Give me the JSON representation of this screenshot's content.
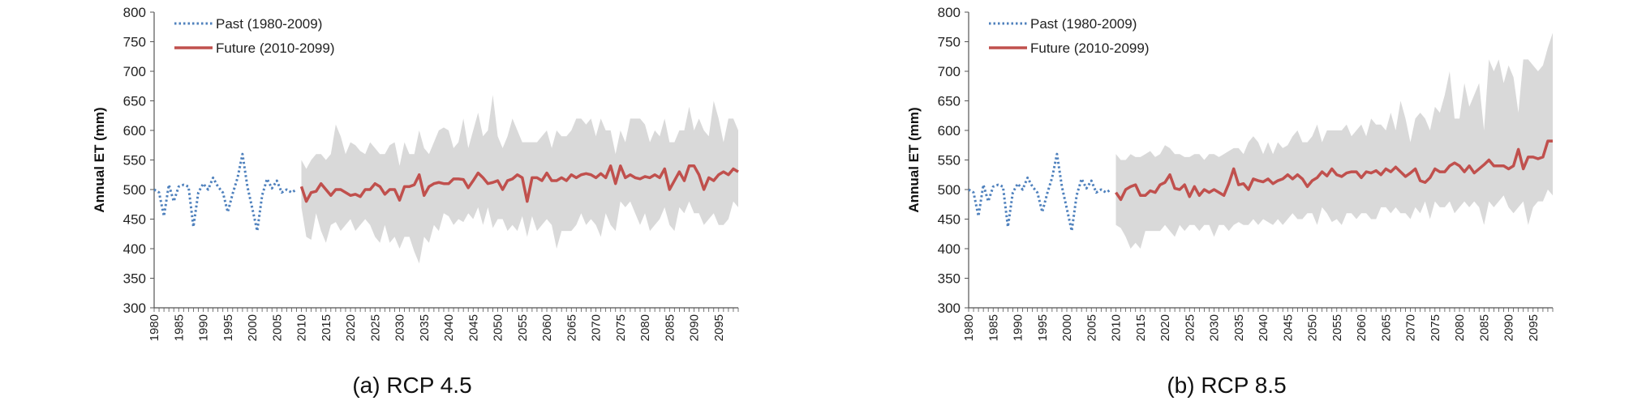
{
  "chart_data": [
    {
      "type": "line",
      "caption": "(a) RCP 4.5",
      "ylabel": "Annual ET (mm)",
      "xlabel": "",
      "ylim": [
        300,
        800
      ],
      "yticks": [
        300,
        350,
        400,
        450,
        500,
        550,
        600,
        650,
        700,
        750,
        800
      ],
      "xlim": [
        1980,
        2099
      ],
      "xtick_labels": [
        "1980",
        "1985",
        "1990",
        "1995",
        "2000",
        "2005",
        "2010",
        "2015",
        "2020",
        "2025",
        "2030",
        "2035",
        "2040",
        "2045",
        "2050",
        "2055",
        "2060",
        "2065",
        "2070",
        "2075",
        "2080",
        "2085",
        "2090",
        "2095"
      ],
      "grid": false,
      "legend": "top-left",
      "series": [
        {
          "name": "Past (1980-2009)",
          "style": "dotted",
          "color": "#4f81bd",
          "x_start": 1980,
          "values": [
            500,
            495,
            455,
            508,
            480,
            505,
            508,
            505,
            437,
            495,
            510,
            500,
            520,
            505,
            495,
            462,
            493,
            520,
            560,
            505,
            468,
            430,
            490,
            518,
            502,
            515,
            495,
            500,
            495,
            500
          ]
        },
        {
          "name": "Future (2010-2099)",
          "style": "solid",
          "color": "#c0504d",
          "x_start": 2010,
          "values": [
            505,
            480,
            495,
            497,
            510,
            500,
            490,
            500,
            500,
            495,
            490,
            492,
            488,
            500,
            500,
            510,
            505,
            492,
            500,
            500,
            482,
            505,
            505,
            508,
            525,
            490,
            505,
            510,
            512,
            510,
            510,
            518,
            518,
            517,
            503,
            515,
            528,
            520,
            510,
            512,
            515,
            500,
            515,
            518,
            525,
            520,
            480,
            520,
            520,
            515,
            528,
            515,
            515,
            520,
            515,
            525,
            520,
            525,
            527,
            525,
            520,
            527,
            520,
            540,
            510,
            540,
            520,
            525,
            520,
            518,
            522,
            520,
            525,
            520,
            535,
            500,
            515,
            530,
            515,
            540,
            540,
            525,
            500,
            520,
            515,
            525,
            530,
            525,
            535,
            530
          ],
          "band_upper": [
            550,
            535,
            550,
            560,
            560,
            550,
            560,
            610,
            590,
            560,
            580,
            575,
            565,
            560,
            580,
            570,
            560,
            560,
            575,
            580,
            540,
            580,
            560,
            560,
            600,
            570,
            560,
            580,
            600,
            605,
            600,
            570,
            580,
            620,
            570,
            600,
            630,
            590,
            600,
            660,
            590,
            570,
            590,
            620,
            600,
            580,
            580,
            580,
            580,
            590,
            600,
            570,
            600,
            590,
            590,
            600,
            620,
            620,
            610,
            620,
            590,
            620,
            600,
            600,
            560,
            600,
            580,
            620,
            620,
            620,
            610,
            580,
            600,
            590,
            620,
            580,
            580,
            600,
            600,
            640,
            600,
            620,
            600,
            590,
            650,
            620,
            580,
            620,
            620,
            600
          ],
          "band_lower": [
            470,
            420,
            415,
            460,
            430,
            410,
            440,
            445,
            430,
            440,
            450,
            430,
            440,
            450,
            440,
            420,
            410,
            440,
            410,
            420,
            400,
            420,
            420,
            395,
            375,
            420,
            410,
            440,
            430,
            460,
            455,
            440,
            450,
            445,
            460,
            450,
            470,
            440,
            470,
            435,
            450,
            450,
            430,
            440,
            430,
            455,
            420,
            455,
            430,
            440,
            450,
            440,
            400,
            430,
            430,
            430,
            440,
            460,
            440,
            450,
            440,
            420,
            460,
            440,
            430,
            480,
            470,
            480,
            460,
            440,
            460,
            430,
            440,
            450,
            470,
            440,
            430,
            470,
            460,
            480,
            460,
            460,
            440,
            450,
            460,
            440,
            440,
            450,
            480,
            470
          ]
        }
      ]
    },
    {
      "type": "line",
      "caption": "(b) RCP 8.5",
      "ylabel": "Annual ET (mm)",
      "xlabel": "",
      "ylim": [
        300,
        800
      ],
      "yticks": [
        300,
        350,
        400,
        450,
        500,
        550,
        600,
        650,
        700,
        750,
        800
      ],
      "xlim": [
        1980,
        2099
      ],
      "xtick_labels": [
        "1980",
        "1985",
        "1990",
        "1995",
        "2000",
        "2005",
        "2010",
        "2015",
        "2020",
        "2025",
        "2030",
        "2035",
        "2040",
        "2045",
        "2050",
        "2055",
        "2060",
        "2065",
        "2070",
        "2075",
        "2080",
        "2085",
        "2090",
        "2095"
      ],
      "grid": false,
      "legend": "top-left",
      "series": [
        {
          "name": "Past (1980-2009)",
          "style": "dotted",
          "color": "#4f81bd",
          "x_start": 1980,
          "values": [
            500,
            495,
            455,
            508,
            480,
            505,
            508,
            505,
            437,
            495,
            510,
            500,
            520,
            505,
            495,
            462,
            493,
            520,
            560,
            505,
            468,
            430,
            490,
            518,
            502,
            515,
            495,
            500,
            495,
            500
          ]
        },
        {
          "name": "Future (2010-2099)",
          "style": "solid",
          "color": "#c0504d",
          "x_start": 2010,
          "values": [
            495,
            483,
            500,
            505,
            508,
            490,
            490,
            498,
            495,
            508,
            512,
            525,
            502,
            500,
            508,
            488,
            505,
            490,
            500,
            495,
            500,
            495,
            490,
            510,
            535,
            508,
            510,
            500,
            518,
            515,
            513,
            518,
            510,
            515,
            518,
            525,
            518,
            525,
            518,
            505,
            515,
            520,
            530,
            523,
            535,
            525,
            522,
            528,
            530,
            530,
            520,
            530,
            528,
            532,
            525,
            535,
            530,
            538,
            530,
            522,
            528,
            535,
            515,
            512,
            520,
            535,
            530,
            530,
            540,
            545,
            540,
            530,
            540,
            528,
            535,
            542,
            550,
            540,
            540,
            540,
            535,
            540,
            568,
            535,
            555,
            555,
            552,
            555,
            582,
            582
          ],
          "band_upper": [
            560,
            550,
            550,
            560,
            555,
            555,
            560,
            565,
            555,
            560,
            575,
            570,
            560,
            560,
            555,
            555,
            560,
            560,
            550,
            560,
            560,
            555,
            560,
            565,
            570,
            570,
            560,
            580,
            590,
            580,
            560,
            580,
            560,
            580,
            570,
            575,
            590,
            600,
            580,
            580,
            590,
            610,
            580,
            600,
            600,
            600,
            600,
            610,
            590,
            600,
            610,
            590,
            620,
            610,
            610,
            600,
            630,
            600,
            650,
            620,
            580,
            620,
            630,
            620,
            600,
            640,
            630,
            660,
            700,
            620,
            620,
            680,
            640,
            660,
            680,
            600,
            720,
            700,
            720,
            680,
            710,
            690,
            630,
            720,
            720,
            710,
            700,
            710,
            740,
            765
          ],
          "band_lower": [
            440,
            435,
            420,
            400,
            410,
            400,
            430,
            430,
            430,
            430,
            440,
            430,
            420,
            440,
            430,
            440,
            440,
            430,
            440,
            440,
            420,
            440,
            440,
            430,
            440,
            445,
            440,
            440,
            450,
            440,
            450,
            445,
            440,
            450,
            440,
            450,
            460,
            450,
            450,
            460,
            460,
            440,
            470,
            460,
            445,
            450,
            440,
            460,
            460,
            450,
            460,
            460,
            450,
            450,
            470,
            470,
            460,
            470,
            460,
            460,
            450,
            470,
            460,
            480,
            450,
            480,
            470,
            470,
            480,
            460,
            470,
            480,
            470,
            480,
            470,
            440,
            480,
            470,
            480,
            490,
            470,
            460,
            470,
            480,
            440,
            470,
            480,
            480,
            500,
            490
          ]
        }
      ]
    }
  ]
}
